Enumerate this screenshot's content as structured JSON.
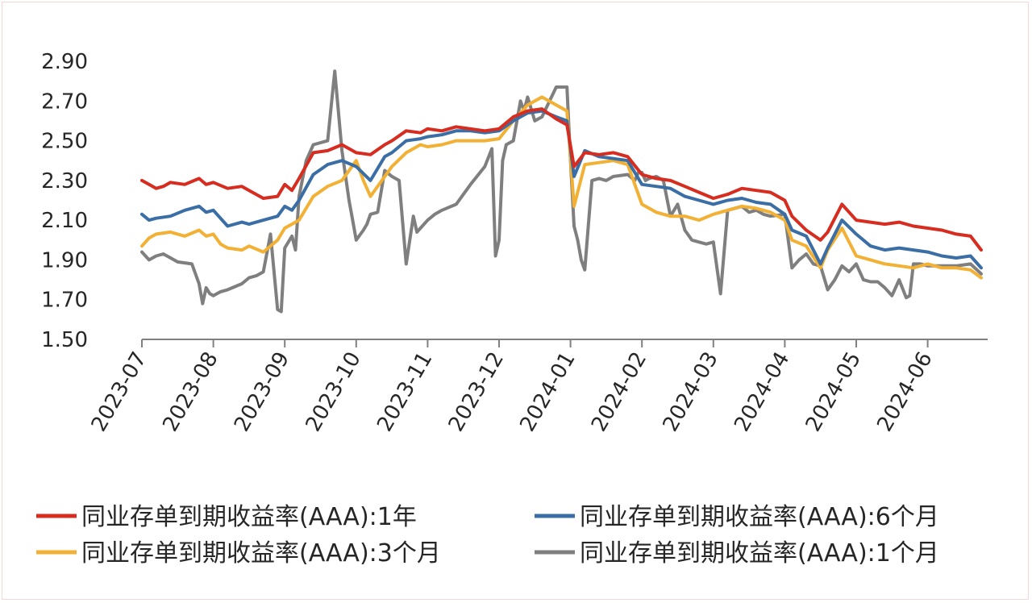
{
  "chart_data": {
    "type": "line",
    "title": "",
    "xlabel": "",
    "ylabel": "",
    "ylim": [
      1.5,
      2.9
    ],
    "yticks": [
      "2.90",
      "2.70",
      "2.50",
      "2.30",
      "2.10",
      "1.90",
      "1.70",
      "1.50"
    ],
    "ytick_values": [
      2.9,
      2.7,
      2.5,
      2.3,
      2.1,
      1.9,
      1.7,
      1.5
    ],
    "x_months": [
      "2023-07",
      "2023-08",
      "2023-09",
      "2023-10",
      "2023-11",
      "2023-12",
      "2024-01",
      "2024-02",
      "2024-03",
      "2024-04",
      "2024-05",
      "2024-06"
    ],
    "x_unit": "month index (0 = 2023-07)",
    "legend_position": "bottom",
    "series": [
      {
        "name": "同业存单到期收益率(AAA):1年",
        "color": "#d62d20",
        "x": [
          0,
          0.1,
          0.2,
          0.3,
          0.4,
          0.6,
          0.8,
          0.9,
          1.0,
          1.2,
          1.4,
          1.5,
          1.7,
          1.9,
          2.0,
          2.1,
          2.2,
          2.4,
          2.6,
          2.8,
          3.0,
          3.2,
          3.4,
          3.5,
          3.7,
          3.9,
          4.0,
          4.2,
          4.4,
          4.6,
          4.8,
          5.0,
          5.2,
          5.4,
          5.6,
          5.8,
          5.95,
          6.05,
          6.2,
          6.4,
          6.6,
          6.8,
          7.0,
          7.2,
          7.4,
          7.6,
          7.8,
          8.0,
          8.2,
          8.4,
          8.6,
          8.8,
          9.0,
          9.1,
          9.3,
          9.5,
          9.6,
          9.8,
          10.0,
          10.2,
          10.4,
          10.6,
          10.8,
          11.0,
          11.2,
          11.4,
          11.6,
          11.75
        ],
        "values": [
          2.3,
          2.28,
          2.26,
          2.27,
          2.29,
          2.28,
          2.31,
          2.28,
          2.29,
          2.26,
          2.27,
          2.25,
          2.21,
          2.22,
          2.28,
          2.25,
          2.31,
          2.44,
          2.45,
          2.48,
          2.44,
          2.43,
          2.48,
          2.5,
          2.55,
          2.54,
          2.56,
          2.55,
          2.57,
          2.56,
          2.55,
          2.56,
          2.62,
          2.65,
          2.66,
          2.61,
          2.58,
          2.37,
          2.44,
          2.43,
          2.44,
          2.42,
          2.33,
          2.31,
          2.3,
          2.27,
          2.24,
          2.21,
          2.23,
          2.26,
          2.25,
          2.24,
          2.2,
          2.12,
          2.05,
          2.0,
          2.04,
          2.18,
          2.1,
          2.09,
          2.08,
          2.09,
          2.07,
          2.06,
          2.05,
          2.03,
          2.02,
          1.95
        ]
      },
      {
        "name": "同业存单到期收益率(AAA):6个月",
        "color": "#3a6ea5",
        "x": [
          0,
          0.1,
          0.2,
          0.4,
          0.6,
          0.8,
          0.9,
          1.0,
          1.2,
          1.4,
          1.5,
          1.7,
          1.9,
          2.0,
          2.1,
          2.2,
          2.4,
          2.6,
          2.8,
          3.0,
          3.2,
          3.4,
          3.5,
          3.7,
          3.9,
          4.0,
          4.2,
          4.4,
          4.6,
          4.8,
          5.0,
          5.2,
          5.4,
          5.6,
          5.8,
          5.95,
          6.05,
          6.2,
          6.4,
          6.6,
          6.8,
          7.0,
          7.2,
          7.4,
          7.6,
          7.8,
          8.0,
          8.2,
          8.4,
          8.6,
          8.8,
          9.0,
          9.1,
          9.3,
          9.5,
          9.6,
          9.8,
          10.0,
          10.2,
          10.4,
          10.6,
          10.8,
          11.0,
          11.2,
          11.4,
          11.6,
          11.75
        ],
        "values": [
          2.13,
          2.1,
          2.11,
          2.12,
          2.15,
          2.17,
          2.14,
          2.15,
          2.07,
          2.09,
          2.08,
          2.1,
          2.12,
          2.17,
          2.15,
          2.2,
          2.33,
          2.38,
          2.4,
          2.37,
          2.3,
          2.42,
          2.44,
          2.5,
          2.51,
          2.52,
          2.53,
          2.55,
          2.55,
          2.54,
          2.55,
          2.6,
          2.64,
          2.65,
          2.62,
          2.6,
          2.32,
          2.45,
          2.42,
          2.41,
          2.4,
          2.28,
          2.27,
          2.26,
          2.22,
          2.2,
          2.18,
          2.2,
          2.21,
          2.19,
          2.18,
          2.13,
          2.05,
          2.02,
          1.88,
          1.96,
          2.1,
          2.03,
          1.97,
          1.95,
          1.96,
          1.95,
          1.94,
          1.92,
          1.91,
          1.92,
          1.86
        ]
      },
      {
        "name": "同业存单到期收益率(AAA):3个月",
        "color": "#f2b134",
        "x": [
          0,
          0.1,
          0.2,
          0.4,
          0.6,
          0.8,
          0.9,
          1.0,
          1.1,
          1.2,
          1.4,
          1.5,
          1.7,
          1.9,
          2.0,
          2.2,
          2.4,
          2.6,
          2.8,
          3.0,
          3.1,
          3.2,
          3.4,
          3.5,
          3.7,
          3.9,
          4.0,
          4.2,
          4.4,
          4.6,
          4.8,
          5.0,
          5.2,
          5.4,
          5.6,
          5.8,
          5.95,
          6.05,
          6.2,
          6.4,
          6.6,
          6.8,
          7.0,
          7.2,
          7.4,
          7.6,
          7.8,
          8.0,
          8.2,
          8.4,
          8.6,
          8.8,
          9.0,
          9.1,
          9.3,
          9.5,
          9.6,
          9.8,
          10.0,
          10.2,
          10.4,
          10.6,
          10.8,
          11.0,
          11.2,
          11.4,
          11.6,
          11.75
        ],
        "values": [
          1.97,
          2.01,
          2.03,
          2.04,
          2.02,
          2.05,
          2.02,
          2.03,
          1.98,
          1.96,
          1.95,
          1.97,
          1.94,
          2.0,
          2.06,
          2.1,
          2.22,
          2.27,
          2.3,
          2.4,
          2.3,
          2.22,
          2.32,
          2.37,
          2.44,
          2.48,
          2.47,
          2.48,
          2.5,
          2.5,
          2.5,
          2.51,
          2.6,
          2.68,
          2.72,
          2.68,
          2.65,
          2.17,
          2.38,
          2.39,
          2.4,
          2.38,
          2.18,
          2.14,
          2.12,
          2.12,
          2.1,
          2.13,
          2.15,
          2.17,
          2.16,
          2.14,
          2.1,
          2.0,
          1.97,
          1.86,
          1.95,
          2.06,
          1.92,
          1.9,
          1.88,
          1.87,
          1.86,
          1.88,
          1.86,
          1.86,
          1.85,
          1.81
        ]
      },
      {
        "name": "同业存单到期收益率(AAA):1个月",
        "color": "#7f7f7f",
        "x": [
          0,
          0.1,
          0.2,
          0.3,
          0.5,
          0.7,
          0.8,
          0.85,
          0.9,
          0.95,
          1.0,
          1.1,
          1.2,
          1.4,
          1.5,
          1.6,
          1.7,
          1.8,
          1.9,
          1.95,
          2.0,
          2.1,
          2.15,
          2.2,
          2.3,
          2.4,
          2.6,
          2.7,
          2.8,
          2.9,
          2.95,
          3.0,
          3.1,
          3.15,
          3.2,
          3.3,
          3.4,
          3.5,
          3.6,
          3.7,
          3.8,
          3.85,
          3.9,
          4.0,
          4.1,
          4.2,
          4.4,
          4.6,
          4.8,
          4.9,
          4.95,
          5.0,
          5.05,
          5.1,
          5.2,
          5.3,
          5.35,
          5.4,
          5.5,
          5.6,
          5.8,
          5.95,
          6.0,
          6.05,
          6.1,
          6.15,
          6.2,
          6.3,
          6.4,
          6.5,
          6.6,
          6.8,
          6.9,
          6.95,
          7.0,
          7.05,
          7.1,
          7.2,
          7.3,
          7.4,
          7.5,
          7.6,
          7.7,
          7.8,
          7.9,
          8.0,
          8.1,
          8.2,
          8.3,
          8.4,
          8.5,
          8.6,
          8.7,
          8.8,
          9.0,
          9.1,
          9.2,
          9.3,
          9.4,
          9.5,
          9.6,
          9.7,
          9.8,
          9.9,
          10.0,
          10.1,
          10.2,
          10.3,
          10.4,
          10.5,
          10.6,
          10.7,
          10.75,
          10.8,
          10.9,
          11.0,
          11.2,
          11.4,
          11.6,
          11.75
        ],
        "values": [
          1.94,
          1.9,
          1.92,
          1.93,
          1.89,
          1.88,
          1.78,
          1.68,
          1.76,
          1.73,
          1.72,
          1.74,
          1.75,
          1.78,
          1.81,
          1.82,
          1.84,
          2.03,
          1.65,
          1.64,
          1.96,
          2.02,
          1.95,
          2.22,
          2.4,
          2.48,
          2.5,
          2.85,
          2.45,
          2.2,
          2.1,
          2.0,
          2.05,
          2.08,
          2.13,
          2.14,
          2.35,
          2.32,
          2.3,
          1.88,
          2.12,
          2.04,
          2.06,
          2.1,
          2.13,
          2.15,
          2.18,
          2.28,
          2.37,
          2.46,
          1.92,
          2.0,
          2.4,
          2.48,
          2.5,
          2.7,
          2.65,
          2.72,
          2.6,
          2.62,
          2.77,
          2.77,
          2.4,
          2.07,
          2.0,
          1.9,
          1.85,
          2.3,
          2.31,
          2.3,
          2.32,
          2.33,
          2.3,
          2.34,
          2.34,
          2.3,
          2.31,
          2.32,
          2.3,
          2.12,
          2.18,
          2.05,
          2.0,
          1.99,
          1.98,
          1.99,
          1.73,
          2.15,
          2.16,
          2.17,
          2.14,
          2.15,
          2.13,
          2.12,
          2.13,
          1.86,
          1.9,
          1.93,
          1.88,
          1.87,
          1.75,
          1.8,
          1.87,
          1.84,
          1.88,
          1.8,
          1.79,
          1.79,
          1.76,
          1.72,
          1.8,
          1.71,
          1.72,
          1.88,
          1.88,
          1.87,
          1.87,
          1.87,
          1.88,
          1.83
        ]
      }
    ]
  }
}
